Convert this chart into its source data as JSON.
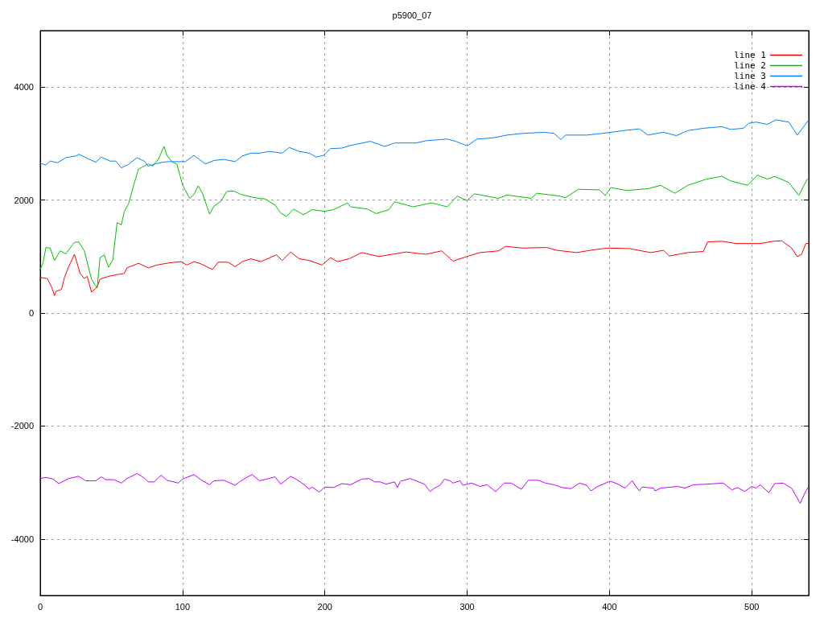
{
  "chart_data": {
    "type": "line",
    "title": "p5900_07",
    "xlim": [
      0,
      540
    ],
    "xticks": [
      0,
      100,
      200,
      300,
      400,
      500
    ],
    "ylim": [
      -5000,
      5000
    ],
    "yticks": [
      -4000,
      -2000,
      0,
      2000,
      4000
    ],
    "grid": true,
    "legend": "top right",
    "marker": "none",
    "line_style": "solid",
    "series": [
      {
        "name": "line 1",
        "color": "#ff0000",
        "x": [
          0,
          5,
          8,
          10,
          11,
          15,
          17,
          20,
          24,
          25,
          28,
          31,
          33,
          36,
          40,
          42,
          48,
          54,
          59,
          61,
          69,
          76,
          82,
          91,
          99,
          103,
          108,
          113,
          121,
          125,
          132,
          137,
          142,
          148,
          155,
          166,
          170,
          176,
          182,
          189,
          198,
          204,
          209,
          217,
          226,
          238,
          257,
          271,
          282,
          290,
          301,
          309,
          322,
          327,
          339,
          356,
          363,
          377,
          389,
          399,
          414,
          429,
          438,
          442,
          455,
          466,
          469,
          479,
          489,
          506,
          515,
          521,
          528,
          532,
          535,
          538,
          540
        ],
        "values": [
          630,
          610,
          460,
          310,
          380,
          420,
          630,
          820,
          1040,
          960,
          700,
          610,
          650,
          370,
          460,
          600,
          650,
          680,
          700,
          800,
          880,
          800,
          850,
          890,
          910,
          850,
          910,
          870,
          770,
          900,
          900,
          820,
          910,
          960,
          910,
          1030,
          930,
          1080,
          960,
          930,
          850,
          980,
          910,
          960,
          1070,
          1000,
          1080,
          1040,
          1100,
          920,
          1010,
          1070,
          1100,
          1180,
          1150,
          1160,
          1110,
          1070,
          1120,
          1150,
          1140,
          1070,
          1110,
          1010,
          1070,
          1090,
          1260,
          1270,
          1230,
          1230,
          1270,
          1280,
          1150,
          1000,
          1040,
          1230,
          1230
        ]
      },
      {
        "name": "line 2",
        "color": "#00c000",
        "x": [
          0,
          2,
          4,
          7,
          10,
          14,
          18,
          24,
          27,
          31,
          36,
          40,
          42,
          45,
          48,
          51,
          54,
          57,
          59,
          62,
          66,
          69,
          73,
          76,
          79,
          83,
          87,
          89,
          93,
          96,
          100,
          105,
          108,
          111,
          114,
          119,
          122,
          127,
          131,
          136,
          141,
          149,
          154,
          158,
          165,
          169,
          173,
          178,
          185,
          191,
          200,
          206,
          216,
          218,
          230,
          236,
          245,
          249,
          262,
          275,
          286,
          293,
          300,
          305,
          322,
          328,
          345,
          349,
          365,
          369,
          378,
          393,
          397,
          401,
          412,
          427,
          436,
          446,
          455,
          468,
          479,
          485,
          497,
          504,
          511,
          516,
          526,
          533,
          539
        ],
        "values": [
          770,
          890,
          1160,
          1150,
          930,
          1100,
          1050,
          1250,
          1260,
          1100,
          600,
          440,
          980,
          1030,
          810,
          940,
          1600,
          1560,
          1790,
          1930,
          2290,
          2550,
          2600,
          2640,
          2600,
          2720,
          2950,
          2790,
          2670,
          2640,
          2270,
          2030,
          2100,
          2250,
          2120,
          1750,
          1890,
          1980,
          2150,
          2160,
          2100,
          2050,
          2030,
          2020,
          1910,
          1770,
          1710,
          1840,
          1740,
          1830,
          1800,
          1830,
          1950,
          1880,
          1840,
          1760,
          1830,
          1970,
          1880,
          1950,
          1880,
          2070,
          1990,
          2110,
          2030,
          2090,
          2030,
          2120,
          2070,
          2040,
          2190,
          2180,
          2080,
          2220,
          2170,
          2200,
          2260,
          2120,
          2260,
          2370,
          2420,
          2340,
          2260,
          2440,
          2370,
          2420,
          2310,
          2080,
          2370
        ]
      },
      {
        "name": "line 3",
        "color": "#0080ff",
        "x": [
          0,
          4,
          7,
          12,
          18,
          25,
          27,
          33,
          39,
          43,
          49,
          53,
          57,
          62,
          68,
          73,
          76,
          81,
          86,
          90,
          102,
          108,
          116,
          122,
          129,
          137,
          142,
          148,
          154,
          161,
          170,
          175,
          182,
          189,
          194,
          199,
          204,
          212,
          217,
          232,
          242,
          249,
          264,
          271,
          286,
          292,
          300,
          307,
          318,
          328,
          339,
          354,
          361,
          366,
          369,
          384,
          395,
          410,
          421,
          427,
          438,
          447,
          455,
          466,
          479,
          485,
          494,
          498,
          503,
          511,
          517,
          526,
          532,
          540
        ],
        "values": [
          2650,
          2620,
          2690,
          2660,
          2750,
          2780,
          2810,
          2740,
          2670,
          2760,
          2690,
          2690,
          2570,
          2630,
          2750,
          2690,
          2600,
          2640,
          2670,
          2680,
          2680,
          2790,
          2640,
          2700,
          2720,
          2680,
          2780,
          2830,
          2830,
          2860,
          2830,
          2930,
          2860,
          2830,
          2760,
          2790,
          2910,
          2920,
          2960,
          3040,
          2950,
          3010,
          3010,
          3050,
          3080,
          3040,
          2960,
          3080,
          3100,
          3150,
          3180,
          3200,
          3180,
          3070,
          3150,
          3150,
          3180,
          3230,
          3260,
          3150,
          3200,
          3140,
          3230,
          3270,
          3300,
          3250,
          3270,
          3360,
          3380,
          3340,
          3420,
          3380,
          3150,
          3420
        ]
      },
      {
        "name": "line 4",
        "color": "#c000ff",
        "x": [
          0,
          4,
          9,
          13,
          20,
          27,
          32,
          39,
          43,
          46,
          52,
          57,
          61,
          68,
          73,
          76,
          80,
          85,
          89,
          97,
          100,
          108,
          114,
          119,
          122,
          129,
          137,
          140,
          145,
          149,
          154,
          159,
          165,
          169,
          176,
          181,
          186,
          189,
          191,
          196,
          200,
          206,
          212,
          218,
          226,
          231,
          235,
          239,
          243,
          249,
          251,
          253,
          260,
          268,
          270,
          274,
          277,
          281,
          284,
          288,
          290,
          295,
          297,
          303,
          309,
          314,
          320,
          326,
          331,
          338,
          343,
          350,
          355,
          361,
          367,
          373,
          379,
          384,
          387,
          391,
          399,
          401,
          406,
          411,
          416,
          418,
          421,
          423,
          431,
          432,
          436,
          448,
          453,
          459,
          468,
          480,
          486,
          490,
          495,
          500,
          503,
          506,
          512,
          516,
          522,
          528,
          534,
          538,
          540
        ],
        "values": [
          -2930,
          -2910,
          -2940,
          -3020,
          -2930,
          -2890,
          -2970,
          -2970,
          -2900,
          -2950,
          -2950,
          -3010,
          -2930,
          -2840,
          -2920,
          -2990,
          -2990,
          -2870,
          -2960,
          -3010,
          -2940,
          -2860,
          -2970,
          -3040,
          -2970,
          -2960,
          -3050,
          -2990,
          -2910,
          -2860,
          -2970,
          -2940,
          -2900,
          -3030,
          -2890,
          -2960,
          -3050,
          -3120,
          -3080,
          -3170,
          -3080,
          -3090,
          -3020,
          -3040,
          -2940,
          -2930,
          -2990,
          -2990,
          -3030,
          -2990,
          -3090,
          -2980,
          -2930,
          -3010,
          -3030,
          -3160,
          -3100,
          -3050,
          -2940,
          -2970,
          -3010,
          -2970,
          -3050,
          -3010,
          -3070,
          -3040,
          -3160,
          -3010,
          -3010,
          -3120,
          -2960,
          -2960,
          -3010,
          -3040,
          -3090,
          -3110,
          -3010,
          -3050,
          -3150,
          -3080,
          -2990,
          -2980,
          -3030,
          -3100,
          -2970,
          -3050,
          -3150,
          -3080,
          -3100,
          -3150,
          -3100,
          -3070,
          -3100,
          -3040,
          -3030,
          -3010,
          -3130,
          -3090,
          -3160,
          -3070,
          -3100,
          -3040,
          -3180,
          -3020,
          -3010,
          -3100,
          -3370,
          -3150,
          -3070
        ]
      }
    ]
  }
}
